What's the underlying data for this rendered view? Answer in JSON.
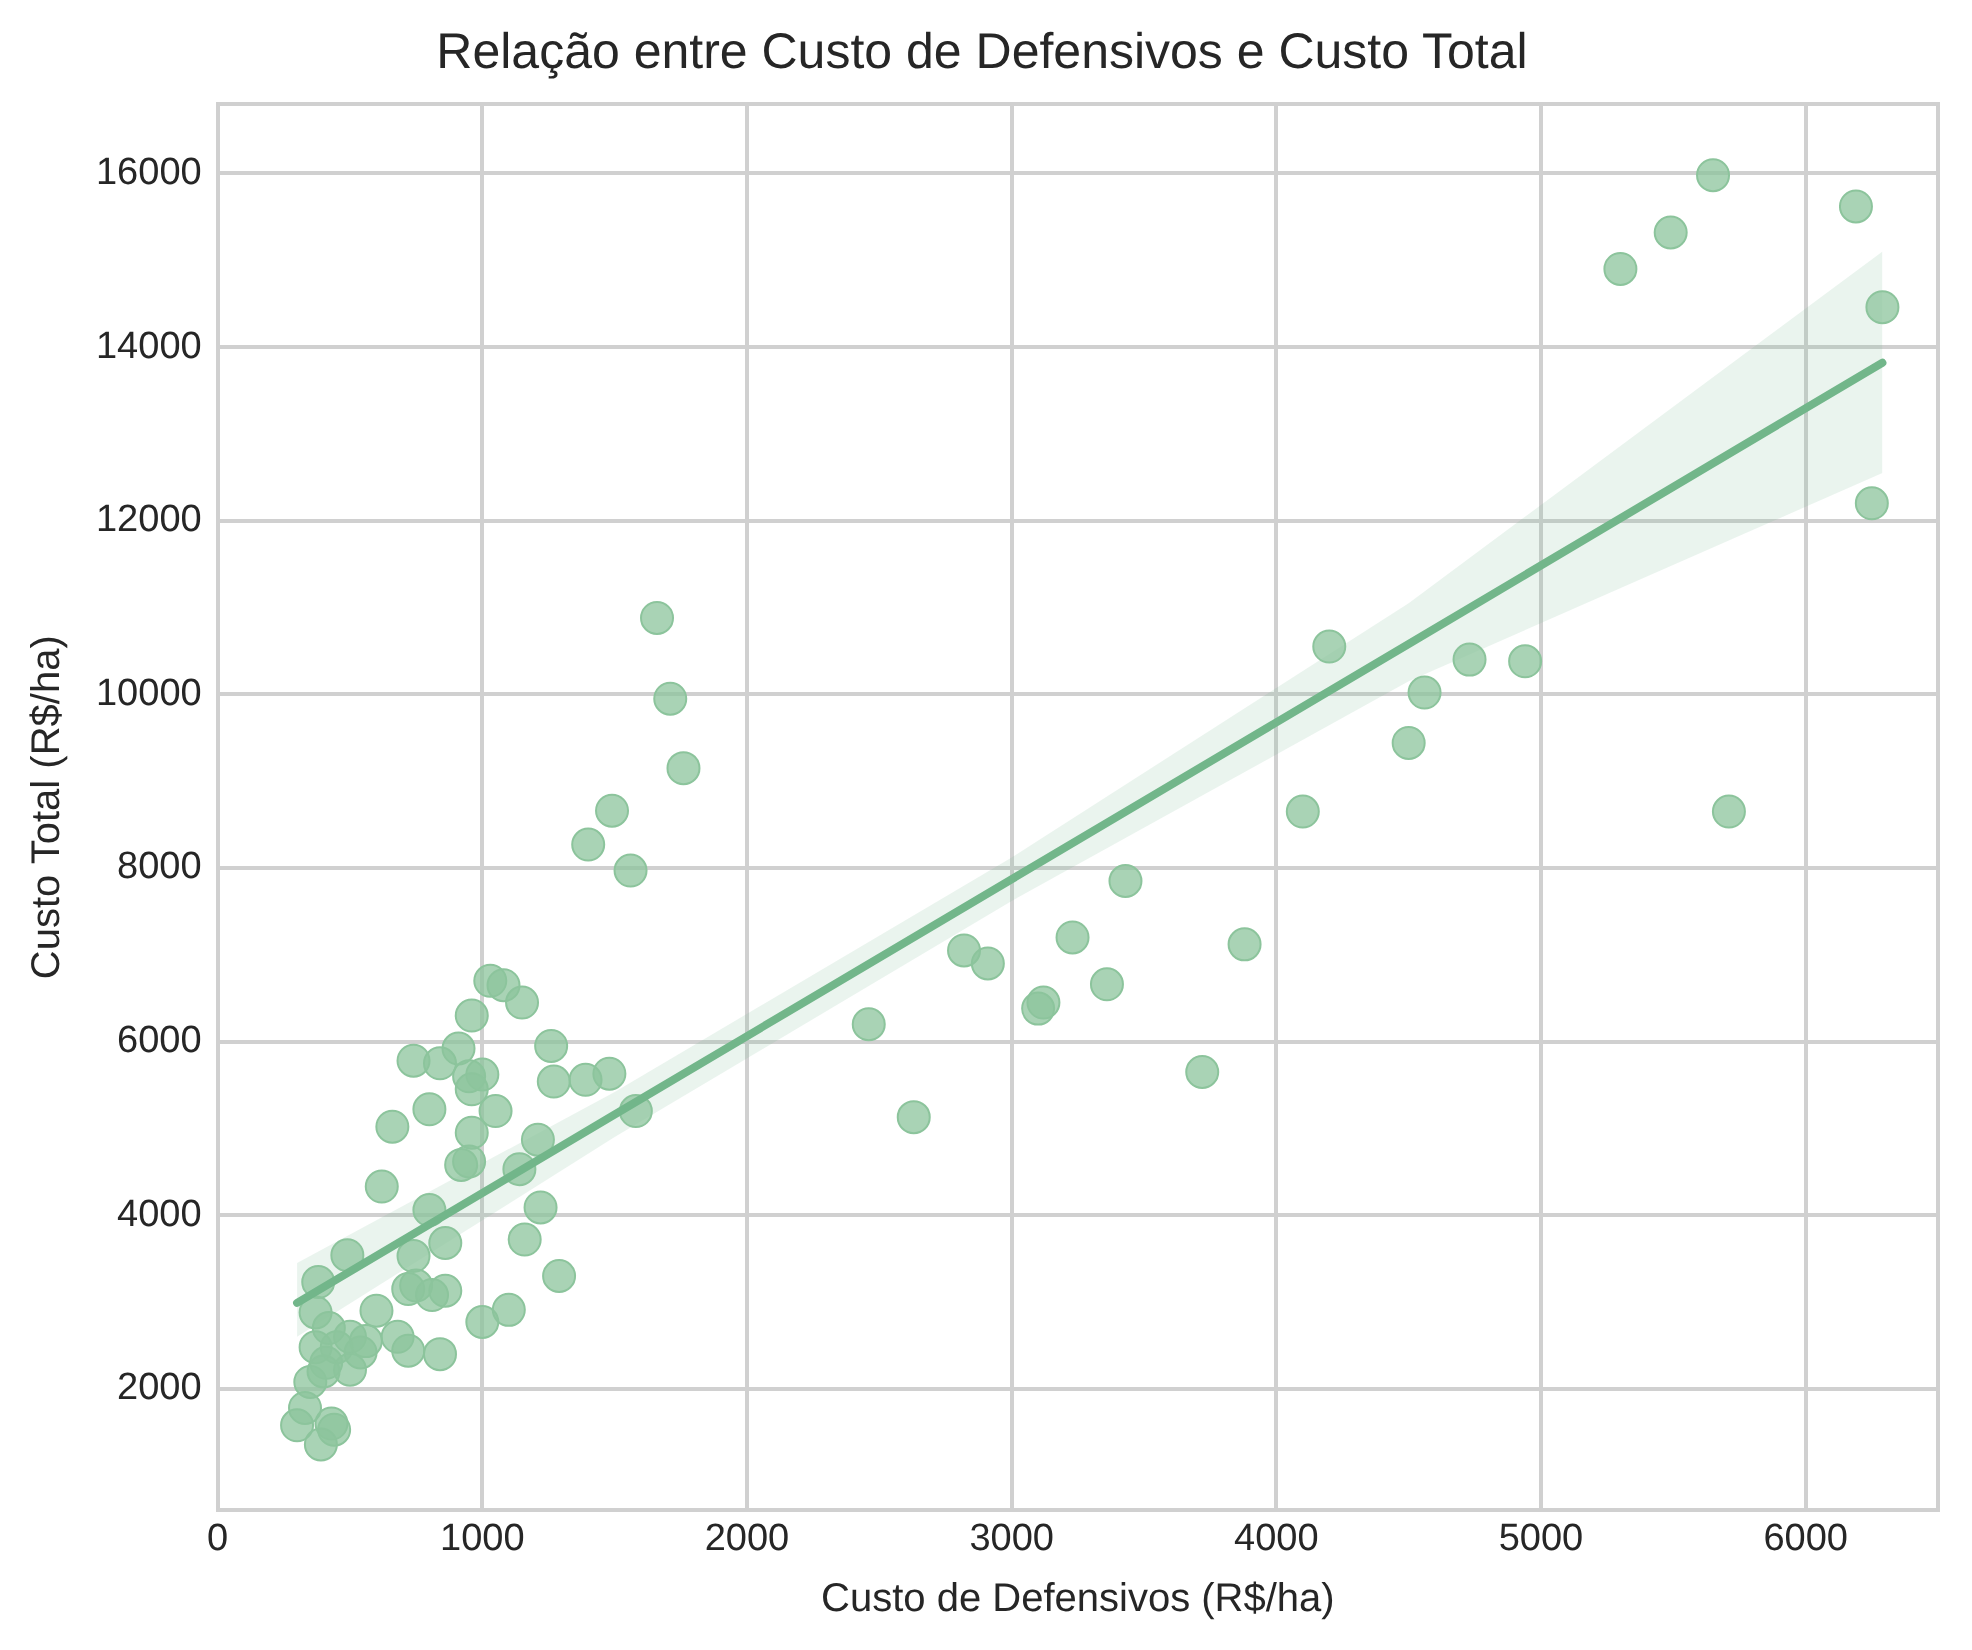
{
  "chart_data": {
    "type": "scatter",
    "title": "Relação entre Custo de Defensivos e Custo Total",
    "xlabel": "Custo de Defensivos (R$/ha)",
    "ylabel": "Custo Total (R$/ha)",
    "xlim": [
      0,
      6500
    ],
    "xticks": [
      0,
      1000,
      2000,
      3000,
      4000,
      5000,
      6000
    ],
    "ylim": [
      600,
      16800
    ],
    "yticks": [
      2000,
      4000,
      6000,
      8000,
      10000,
      12000,
      14000,
      16000
    ],
    "grid": true,
    "series": [
      {
        "marker": "circle",
        "color": "#8cc49c",
        "x": [
          5300,
          5490,
          5650,
          6190,
          6290,
          6250,
          5710,
          4940,
          4730,
          4560,
          4500,
          4200,
          4100,
          3880,
          3720,
          3430,
          3360,
          3230,
          3120,
          3100,
          2910,
          2820,
          2630,
          2460,
          1660,
          1710,
          1760,
          1490,
          1400,
          1560,
          1580,
          1480,
          1390,
          1290,
          1030,
          1080,
          1150,
          960,
          910,
          1260,
          1270,
          1000,
          950,
          960,
          840,
          740,
          800,
          1050,
          660,
          1210,
          960,
          950,
          920,
          1140,
          620,
          800,
          1220,
          860,
          1160,
          740,
          490,
          380,
          750,
          720,
          860,
          810,
          600,
          370,
          1000,
          1100,
          420,
          680,
          500,
          560,
          450,
          370,
          540,
          720,
          840,
          410,
          500,
          350,
          400,
          330,
          300,
          430,
          440,
          390
        ],
        "values": [
          14900,
          15320,
          15980,
          15620,
          14460,
          12200,
          8650,
          10380,
          10400,
          10020,
          9440,
          10550,
          8650,
          7120,
          5650,
          7850,
          6660,
          7200,
          6450,
          6380,
          6900,
          7050,
          5130,
          6200,
          10880,
          9950,
          9150,
          8660,
          8270,
          7970,
          5200,
          5630,
          5560,
          3300,
          6700,
          6650,
          6450,
          6300,
          5920,
          5950,
          5540,
          5620,
          5600,
          5450,
          5750,
          5780,
          5220,
          5200,
          5020,
          4870,
          4950,
          4620,
          4580,
          4530,
          4330,
          4060,
          4090,
          3680,
          3720,
          3530,
          3540,
          3230,
          3190,
          3150,
          3130,
          3080,
          2900,
          2880,
          2770,
          2910,
          2700,
          2600,
          2600,
          2550,
          2480,
          2480,
          2420,
          2440,
          2400,
          2300,
          2220,
          2080,
          2200,
          1780,
          1580,
          1600,
          1530,
          1360
        ]
      },
      {
        "type": "line",
        "marker": "none",
        "color": "#72b68a",
        "x": [
          300,
          1500,
          3000,
          4500,
          6290
        ],
        "values": [
          2990,
          5160,
          7870,
          10580,
          13820
        ],
        "lower": [
          2600,
          4900,
          7620,
          10150,
          12550
        ],
        "upper": [
          3450,
          5420,
          8120,
          11050,
          15100
        ]
      }
    ]
  }
}
